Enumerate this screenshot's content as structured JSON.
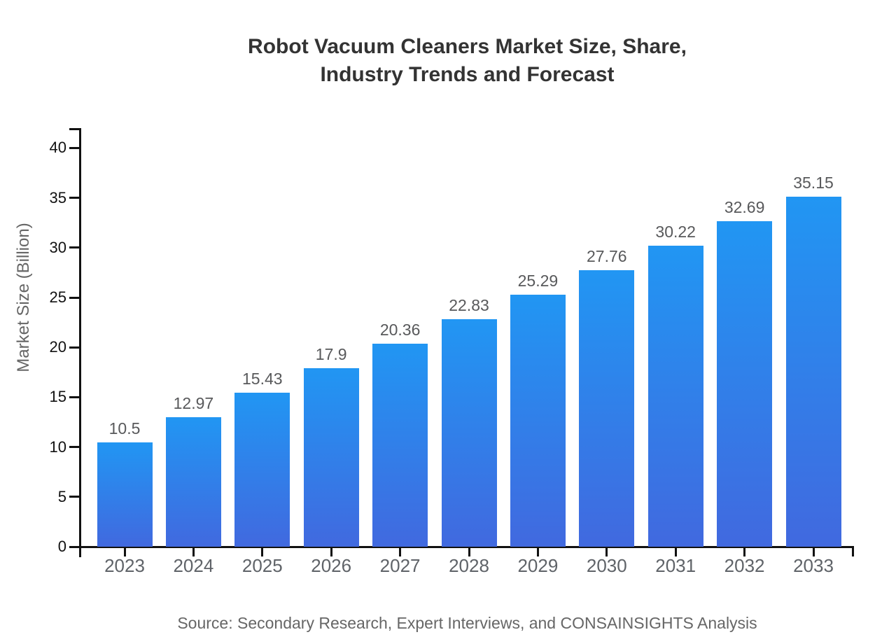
{
  "chart_data": {
    "type": "bar",
    "title": "Robot Vacuum Cleaners Market Size, Share,\nIndustry Trends and Forecast",
    "xlabel": "",
    "ylabel": "Market Size (Billion)",
    "source": "Source: Secondary Research, Expert Interviews, and CONSAINSIGHTS Analysis",
    "categories": [
      "2023",
      "2024",
      "2025",
      "2026",
      "2027",
      "2028",
      "2029",
      "2030",
      "2031",
      "2032",
      "2033"
    ],
    "values": [
      10.5,
      12.97,
      15.43,
      17.9,
      20.36,
      22.83,
      25.29,
      27.76,
      30.22,
      32.69,
      35.15
    ],
    "value_labels": [
      "10.5",
      "12.97",
      "15.43",
      "17.9",
      "20.36",
      "22.83",
      "25.29",
      "27.76",
      "30.22",
      "32.69",
      "35.15"
    ],
    "yticks": [
      0,
      5,
      10,
      15,
      20,
      25,
      30,
      35,
      40
    ],
    "ylim": [
      0,
      42
    ],
    "grid": false,
    "legend": false,
    "colors": {
      "bar_gradient_top": "#2196f3",
      "bar_gradient_bottom": "#4169df",
      "title": "#333333",
      "axis": "#111111",
      "tick_label": "#111111",
      "category_label": "#5f6368",
      "value_label": "#58595b",
      "axis_title": "#666666",
      "source": "#666666",
      "background": "#ffffff"
    }
  }
}
